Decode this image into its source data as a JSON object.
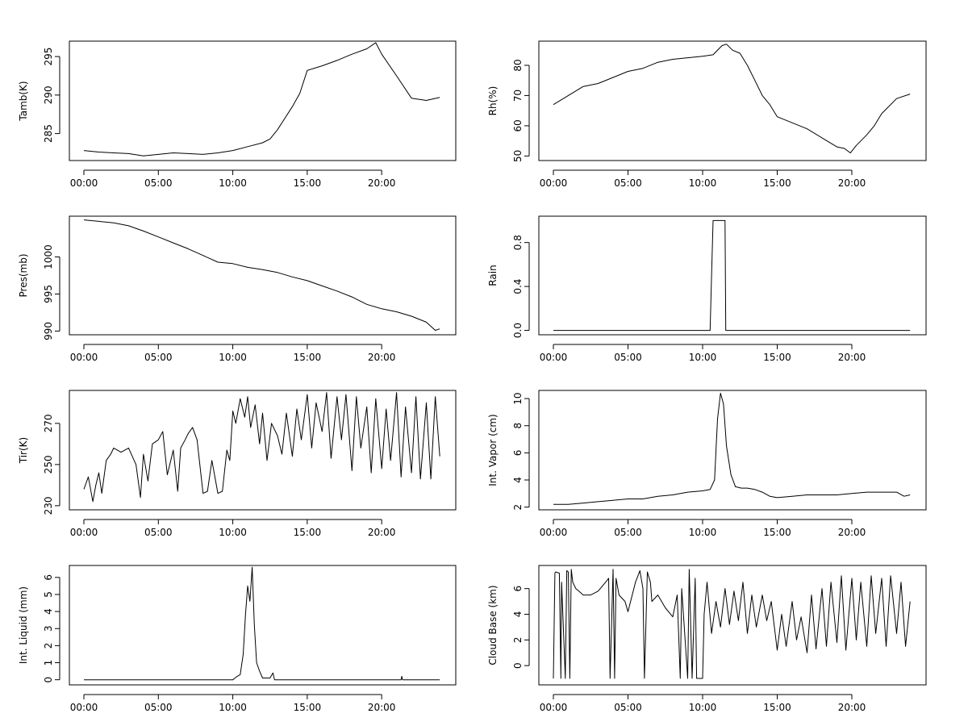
{
  "chart_data": [
    {
      "type": "line",
      "ylabel": "Tamb(K)",
      "xlabel": "",
      "x_range_hours": [
        0,
        24
      ],
      "x_ticks": [
        "00:00",
        "05:00",
        "10:00",
        "15:00",
        "20:00"
      ],
      "ylim": [
        281.5,
        297
      ],
      "y_ticks": [
        285,
        290,
        295
      ],
      "series": [
        {
          "x": [
            0,
            1,
            2,
            3,
            4,
            5,
            6,
            7,
            8,
            9,
            10,
            11,
            12,
            12.5,
            13,
            13.5,
            14,
            14.5,
            15,
            16,
            17,
            18,
            19,
            19.6,
            20,
            21,
            22,
            23,
            23.9
          ],
          "values": [
            282.8,
            282.6,
            282.5,
            282.4,
            282.1,
            282.3,
            282.5,
            282.4,
            282.3,
            282.5,
            282.8,
            283.3,
            283.8,
            284.3,
            285.5,
            287.0,
            288.5,
            290.2,
            293.2,
            293.8,
            294.5,
            295.3,
            296.0,
            296.8,
            295.3,
            292.5,
            289.6,
            289.3,
            289.7
          ]
        }
      ]
    },
    {
      "type": "line",
      "ylabel": "Rh(%)",
      "xlabel": "",
      "x_range_hours": [
        0,
        24
      ],
      "x_ticks": [
        "00:00",
        "05:00",
        "10:00",
        "15:00",
        "20:00"
      ],
      "ylim": [
        48.5,
        88
      ],
      "y_ticks": [
        50,
        60,
        70,
        80
      ],
      "series": [
        {
          "x": [
            0,
            1,
            2,
            3,
            4,
            5,
            6,
            7,
            8,
            9,
            10,
            10.7,
            11.3,
            11.6,
            12,
            12.5,
            13,
            13.5,
            14,
            14.5,
            15,
            16,
            17,
            18,
            19,
            19.5,
            19.9,
            20.3,
            21,
            21.5,
            22,
            23,
            23.9
          ],
          "values": [
            67,
            70,
            73,
            74,
            76,
            78,
            79,
            81,
            82,
            82.5,
            83,
            83.5,
            86.5,
            87,
            85,
            84,
            80,
            75,
            70,
            67,
            63,
            61,
            59,
            56,
            53,
            52.5,
            51,
            53.5,
            57,
            60,
            64,
            69,
            70.5
          ]
        }
      ]
    },
    {
      "type": "line",
      "ylabel": "Pres(mb)",
      "xlabel": "",
      "x_range_hours": [
        0,
        24
      ],
      "x_ticks": [
        "00:00",
        "05:00",
        "10:00",
        "15:00",
        "20:00"
      ],
      "ylim": [
        989.5,
        1005.5
      ],
      "y_ticks": [
        990,
        995,
        1000
      ],
      "series": [
        {
          "x": [
            0,
            1,
            2,
            3,
            4,
            5,
            6,
            7,
            8,
            9,
            10,
            11,
            12,
            13,
            14,
            15,
            16,
            17,
            18,
            19,
            20,
            21,
            22,
            23,
            23.6,
            23.9
          ],
          "values": [
            1005.0,
            1004.8,
            1004.6,
            1004.2,
            1003.5,
            1002.7,
            1001.9,
            1001.1,
            1000.2,
            999.3,
            999.1,
            998.6,
            998.3,
            997.9,
            997.3,
            996.8,
            996.1,
            995.4,
            994.6,
            993.6,
            993.0,
            992.6,
            992.0,
            991.2,
            990.1,
            990.3
          ]
        }
      ]
    },
    {
      "type": "line",
      "ylabel": "Rain",
      "xlabel": "",
      "x_range_hours": [
        0,
        24
      ],
      "x_ticks": [
        "00:00",
        "05:00",
        "10:00",
        "15:00",
        "20:00"
      ],
      "ylim": [
        -0.04,
        1.04
      ],
      "y_ticks": [
        0.0,
        0.4,
        0.8
      ],
      "y_tick_labels": [
        "0.0",
        "0.4",
        "0.8"
      ],
      "series": [
        {
          "x": [
            0,
            10.5,
            10.6,
            10.7,
            11.5,
            11.55,
            23.9
          ],
          "values": [
            0,
            0,
            0.5,
            1,
            1,
            0,
            0
          ]
        }
      ]
    },
    {
      "type": "line",
      "ylabel": "Tir(K)",
      "xlabel": "",
      "x_range_hours": [
        0,
        24
      ],
      "x_ticks": [
        "00:00",
        "05:00",
        "10:00",
        "15:00",
        "20:00"
      ],
      "ylim": [
        228,
        286
      ],
      "y_ticks": [
        230,
        250,
        270
      ],
      "series": [
        {
          "x": [
            0,
            0.3,
            0.6,
            0.8,
            1.0,
            1.2,
            1.5,
            1.8,
            2.0,
            2.5,
            3.0,
            3.5,
            3.8,
            4.0,
            4.3,
            4.6,
            5.0,
            5.3,
            5.6,
            6.0,
            6.3,
            6.5,
            6.8,
            7.0,
            7.3,
            7.6,
            8.0,
            8.3,
            8.6,
            9.0,
            9.3,
            9.6,
            9.8,
            10.0,
            10.2,
            10.5,
            10.8,
            11.0,
            11.2,
            11.5,
            11.8,
            12.0,
            12.3,
            12.6,
            13.0,
            13.3,
            13.6,
            14.0,
            14.3,
            14.6,
            15.0,
            15.3,
            15.6,
            16.0,
            16.3,
            16.6,
            17.0,
            17.3,
            17.6,
            18.0,
            18.3,
            18.6,
            19.0,
            19.3,
            19.6,
            20.0,
            20.3,
            20.6,
            21.0,
            21.3,
            21.6,
            22.0,
            22.3,
            22.6,
            23.0,
            23.3,
            23.6,
            23.9
          ],
          "values": [
            238,
            244,
            232,
            240,
            246,
            236,
            252,
            255,
            258,
            256,
            258,
            250,
            234,
            255,
            242,
            260,
            262,
            266,
            245,
            257,
            237,
            258,
            262,
            265,
            268,
            262,
            236,
            237,
            252,
            236,
            237,
            257,
            252,
            276,
            270,
            282,
            273,
            283,
            268,
            279,
            260,
            275,
            252,
            270,
            264,
            255,
            275,
            254,
            277,
            262,
            284,
            258,
            280,
            266,
            285,
            253,
            283,
            262,
            284,
            247,
            283,
            258,
            278,
            246,
            282,
            248,
            277,
            252,
            285,
            244,
            278,
            246,
            283,
            243,
            280,
            243,
            283,
            254
          ]
        }
      ]
    },
    {
      "type": "line",
      "ylabel": "Int. Vapor (cm)",
      "xlabel": "",
      "x_range_hours": [
        0,
        24
      ],
      "x_ticks": [
        "00:00",
        "05:00",
        "10:00",
        "15:00",
        "20:00"
      ],
      "ylim": [
        1.8,
        10.6
      ],
      "y_ticks": [
        2,
        4,
        6,
        8,
        10
      ],
      "series": [
        {
          "x": [
            0,
            1,
            2,
            3,
            4,
            5,
            6,
            7,
            8,
            9,
            10,
            10.5,
            10.8,
            11.0,
            11.2,
            11.4,
            11.6,
            11.9,
            12.2,
            12.6,
            13,
            13.5,
            14,
            14.5,
            15,
            16,
            17,
            18,
            19,
            20,
            21,
            22,
            23,
            23.5,
            23.9
          ],
          "values": [
            2.2,
            2.2,
            2.3,
            2.4,
            2.5,
            2.6,
            2.6,
            2.8,
            2.9,
            3.1,
            3.2,
            3.3,
            4.0,
            8.5,
            10.4,
            9.6,
            6.5,
            4.4,
            3.5,
            3.4,
            3.4,
            3.3,
            3.1,
            2.8,
            2.7,
            2.8,
            2.9,
            2.9,
            2.9,
            3.0,
            3.1,
            3.1,
            3.1,
            2.8,
            2.9
          ]
        }
      ]
    },
    {
      "type": "line",
      "ylabel": "Int. Liquid (mm)",
      "xlabel": "",
      "x_range_hours": [
        0,
        24
      ],
      "x_ticks": [
        "00:00",
        "05:00",
        "10:00",
        "15:00",
        "20:00"
      ],
      "ylim": [
        -0.3,
        6.7
      ],
      "y_ticks": [
        0,
        1,
        2,
        3,
        4,
        5,
        6
      ],
      "series": [
        {
          "x": [
            0,
            10.0,
            10.3,
            10.5,
            10.7,
            10.85,
            11.0,
            11.15,
            11.3,
            11.45,
            11.6,
            11.8,
            12.0,
            12.5,
            12.7,
            12.8,
            13.0,
            21.3,
            21.35,
            21.4,
            23.9
          ],
          "values": [
            0,
            0,
            0.2,
            0.3,
            1.5,
            3.8,
            5.5,
            4.6,
            6.6,
            3.2,
            1.0,
            0.5,
            0.1,
            0.1,
            0.4,
            0,
            0,
            0,
            0.2,
            0,
            0
          ]
        }
      ]
    },
    {
      "type": "line",
      "ylabel": "Cloud Base (km)",
      "xlabel": "",
      "x_range_hours": [
        0,
        24
      ],
      "x_ticks": [
        "00:00",
        "05:00",
        "10:00",
        "15:00",
        "20:00"
      ],
      "ylim": [
        -1.5,
        7.8
      ],
      "y_ticks": [
        0,
        2,
        4,
        6
      ],
      "series": [
        {
          "x": [
            0,
            0.1,
            0.15,
            0.4,
            0.5,
            0.55,
            0.8,
            0.9,
            1.0,
            1.1,
            1.2,
            1.3,
            1.5,
            1.7,
            2.0,
            2.5,
            3.0,
            3.5,
            3.7,
            3.8,
            4.0,
            4.1,
            4.2,
            4.4,
            4.8,
            5.0,
            5.5,
            5.8,
            6.0,
            6.1,
            6.3,
            6.5,
            6.6,
            7.0,
            7.5,
            8.0,
            8.3,
            8.5,
            8.6,
            9.0,
            9.1,
            9.3,
            9.5,
            9.6,
            10.0,
            10.1,
            10.3,
            10.6,
            10.9,
            11.2,
            11.5,
            11.8,
            12.1,
            12.4,
            12.7,
            13.0,
            13.3,
            13.6,
            14.0,
            14.3,
            14.6,
            15.0,
            15.3,
            15.6,
            16.0,
            16.3,
            16.6,
            17.0,
            17.3,
            17.6,
            18.0,
            18.3,
            18.6,
            19.0,
            19.3,
            19.6,
            20.0,
            20.3,
            20.6,
            21.0,
            21.3,
            21.6,
            22.0,
            22.3,
            22.6,
            23.0,
            23.3,
            23.6,
            23.9
          ],
          "values": [
            -1,
            7.2,
            7.3,
            7.2,
            -1,
            6.5,
            -1,
            7.4,
            7.3,
            -1,
            7.5,
            6.5,
            6.0,
            5.8,
            5.5,
            5.5,
            5.8,
            6.5,
            6.8,
            -1,
            7.5,
            -1,
            6.8,
            5.5,
            5.0,
            4.2,
            6.5,
            7.4,
            6.0,
            -1,
            7.3,
            6.5,
            5.0,
            5.5,
            4.5,
            3.8,
            5.5,
            -1,
            6.0,
            -1,
            7.5,
            -1,
            6.8,
            -1,
            -1,
            4.0,
            6.5,
            2.5,
            5.0,
            3.0,
            6.0,
            3.2,
            5.8,
            3.5,
            6.5,
            2.5,
            5.5,
            3.0,
            5.5,
            3.5,
            5.0,
            1.2,
            4.0,
            1.5,
            5.0,
            2.0,
            3.8,
            1.0,
            5.5,
            1.3,
            6.0,
            1.5,
            6.5,
            1.8,
            7.0,
            1.2,
            6.8,
            2.0,
            6.5,
            1.5,
            7.0,
            2.5,
            6.8,
            1.5,
            7.0,
            2.5,
            6.5,
            1.5,
            5.0
          ]
        }
      ]
    }
  ]
}
